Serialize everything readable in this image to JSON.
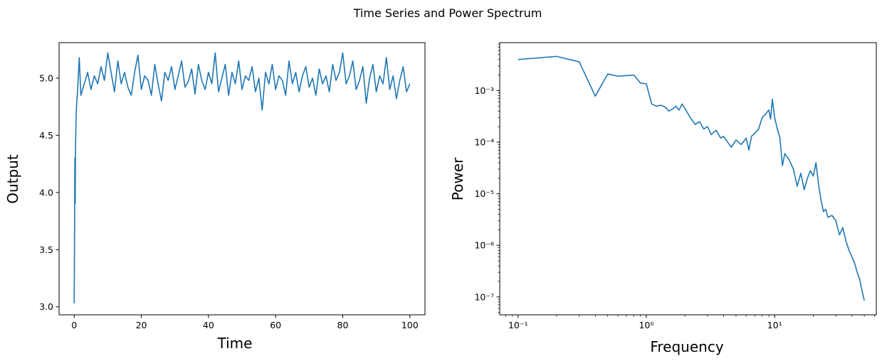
{
  "figure": {
    "suptitle": "Time Series and Power Spectrum"
  },
  "chart_data": [
    {
      "type": "line",
      "xlabel": "Time",
      "ylabel": "Output",
      "xlim": [
        -4.5,
        104.5
      ],
      "ylim": [
        2.93,
        5.31
      ],
      "xticks": [
        0,
        20,
        40,
        60,
        80,
        100
      ],
      "yticks": [
        3.0,
        3.5,
        4.0,
        4.5,
        5.0
      ],
      "xtick_labels": [
        "0",
        "20",
        "40",
        "60",
        "80",
        "100"
      ],
      "ytick_labels": [
        "3.0",
        "3.5",
        "4.0",
        "4.5",
        "5.0"
      ],
      "grid": false,
      "line_color": "#1f77b4",
      "series": [
        {
          "x": [
            0.0,
            0.1,
            0.2,
            0.3,
            0.4,
            0.6,
            0.8,
            1.0,
            1.5,
            2,
            3,
            4,
            5,
            6,
            7,
            8,
            9,
            10,
            11,
            12,
            13,
            14,
            15,
            16,
            17,
            18,
            19,
            20,
            21,
            22,
            23,
            24,
            25,
            26,
            27,
            28,
            29,
            30,
            31,
            32,
            33,
            34,
            35,
            36,
            37,
            38,
            39,
            40,
            41,
            42,
            43,
            44,
            45,
            46,
            47,
            48,
            49,
            50,
            51,
            52,
            53,
            54,
            55,
            56,
            57,
            58,
            59,
            60,
            61,
            62,
            63,
            64,
            65,
            66,
            67,
            68,
            69,
            70,
            71,
            72,
            73,
            74,
            75,
            76,
            77,
            78,
            79,
            80,
            81,
            82,
            83,
            84,
            85,
            86,
            87,
            88,
            89,
            90,
            91,
            92,
            93,
            94,
            95,
            96,
            97,
            98,
            99,
            100
          ],
          "y": [
            3.03,
            3.6,
            4.3,
            3.9,
            4.4,
            4.7,
            4.8,
            4.88,
            5.18,
            4.85,
            4.95,
            5.05,
            4.9,
            5.02,
            4.95,
            5.1,
            4.98,
            5.22,
            5.05,
            4.88,
            5.15,
            4.95,
            5.05,
            4.92,
            4.85,
            5.05,
            5.2,
            4.9,
            5.02,
            4.98,
            4.85,
            5.12,
            4.95,
            4.8,
            5.05,
            4.98,
            5.1,
            4.9,
            5.02,
            5.15,
            4.92,
            4.97,
            5.08,
            4.86,
            5.12,
            4.98,
            4.9,
            5.05,
            4.95,
            5.22,
            4.88,
            5.0,
            5.12,
            4.85,
            5.05,
            4.95,
            5.15,
            4.9,
            5.02,
            4.98,
            5.1,
            4.88,
            5.0,
            4.72,
            5.05,
            4.95,
            5.12,
            4.9,
            5.02,
            4.98,
            4.85,
            5.15,
            4.95,
            5.05,
            4.88,
            5.02,
            5.1,
            4.92,
            5.0,
            4.85,
            5.08,
            4.95,
            5.02,
            4.88,
            5.12,
            4.98,
            5.05,
            5.22,
            4.95,
            5.02,
            5.15,
            4.9,
            4.98,
            5.1,
            4.78,
            5.0,
            5.12,
            4.88,
            5.02,
            4.95,
            5.18,
            4.9,
            5.02,
            4.82,
            4.98,
            5.1,
            4.88,
            4.95
          ]
        }
      ]
    },
    {
      "type": "line",
      "xlabel": "Frequency",
      "ylabel": "Power",
      "xscale": "log",
      "yscale": "log",
      "xlim": [
        0.072,
        62
      ],
      "ylim": [
        4.5e-08,
        0.0085
      ],
      "xticks": [
        0.1,
        1,
        10
      ],
      "yticks": [
        1e-07,
        1e-06,
        1e-05,
        0.0001,
        0.001
      ],
      "xtick_labels": [
        "10⁻¹",
        "10⁰",
        "10¹"
      ],
      "ytick_labels": [
        "10⁻⁷",
        "10⁻⁶",
        "10⁻⁵",
        "10⁻⁴",
        "10⁻³"
      ],
      "grid": false,
      "line_color": "#1f77b4",
      "series": [
        {
          "x": [
            0.05,
            0.1,
            0.2,
            0.3,
            0.4,
            0.5,
            0.6,
            0.8,
            0.9,
            1.0,
            1.1,
            1.2,
            1.3,
            1.4,
            1.5,
            1.6,
            1.7,
            1.8,
            1.9,
            2.0,
            2.2,
            2.4,
            2.6,
            2.8,
            3.0,
            3.2,
            3.5,
            3.8,
            4.0,
            4.3,
            4.6,
            5.0,
            5.5,
            6.0,
            6.3,
            6.6,
            7.0,
            7.5,
            8.0,
            8.5,
            9.0,
            9.3,
            9.6,
            10.0,
            10.5,
            11.0,
            11.5,
            12.0,
            13.0,
            14.0,
            15.0,
            16.0,
            17.0,
            18.0,
            19.0,
            20.0,
            21.0,
            22.0,
            23.0,
            24.0,
            25.0,
            26.0,
            28.0,
            30.0,
            32.0,
            34.0,
            36.0,
            38.0,
            40.0,
            42.0,
            44.0,
            46.0,
            48.0,
            50.0
          ],
          "y": [
            0.004,
            0.004,
            0.0046,
            0.0036,
            0.00078,
            0.0021,
            0.0019,
            0.002,
            0.0014,
            0.00135,
            0.00055,
            0.0005,
            0.00052,
            0.00048,
            0.0004,
            0.00044,
            0.0005,
            0.00042,
            0.00055,
            0.00045,
            0.0003,
            0.00022,
            0.00025,
            0.00018,
            0.0002,
            0.00014,
            0.00017,
            0.00012,
            0.00013,
            0.0001,
            8e-05,
            0.00011,
            9e-05,
            0.00012,
            7e-05,
            0.00013,
            0.00015,
            0.00018,
            0.0003,
            0.00035,
            0.00042,
            0.00028,
            0.00068,
            0.0003,
            0.00018,
            0.00012,
            3.5e-05,
            6e-05,
            4.5e-05,
            3e-05,
            1.4e-05,
            2.5e-05,
            1.2e-05,
            2e-05,
            2.8e-05,
            2.2e-05,
            4e-05,
            1.5e-05,
            7.5e-06,
            4.5e-06,
            5e-06,
            3.5e-06,
            3.8e-06,
            3e-06,
            1.6e-06,
            2.2e-06,
            1.2e-06,
            8e-07,
            6e-07,
            4.5e-07,
            3e-07,
            2.2e-07,
            1.3e-07,
            8.5e-08
          ]
        }
      ]
    }
  ]
}
